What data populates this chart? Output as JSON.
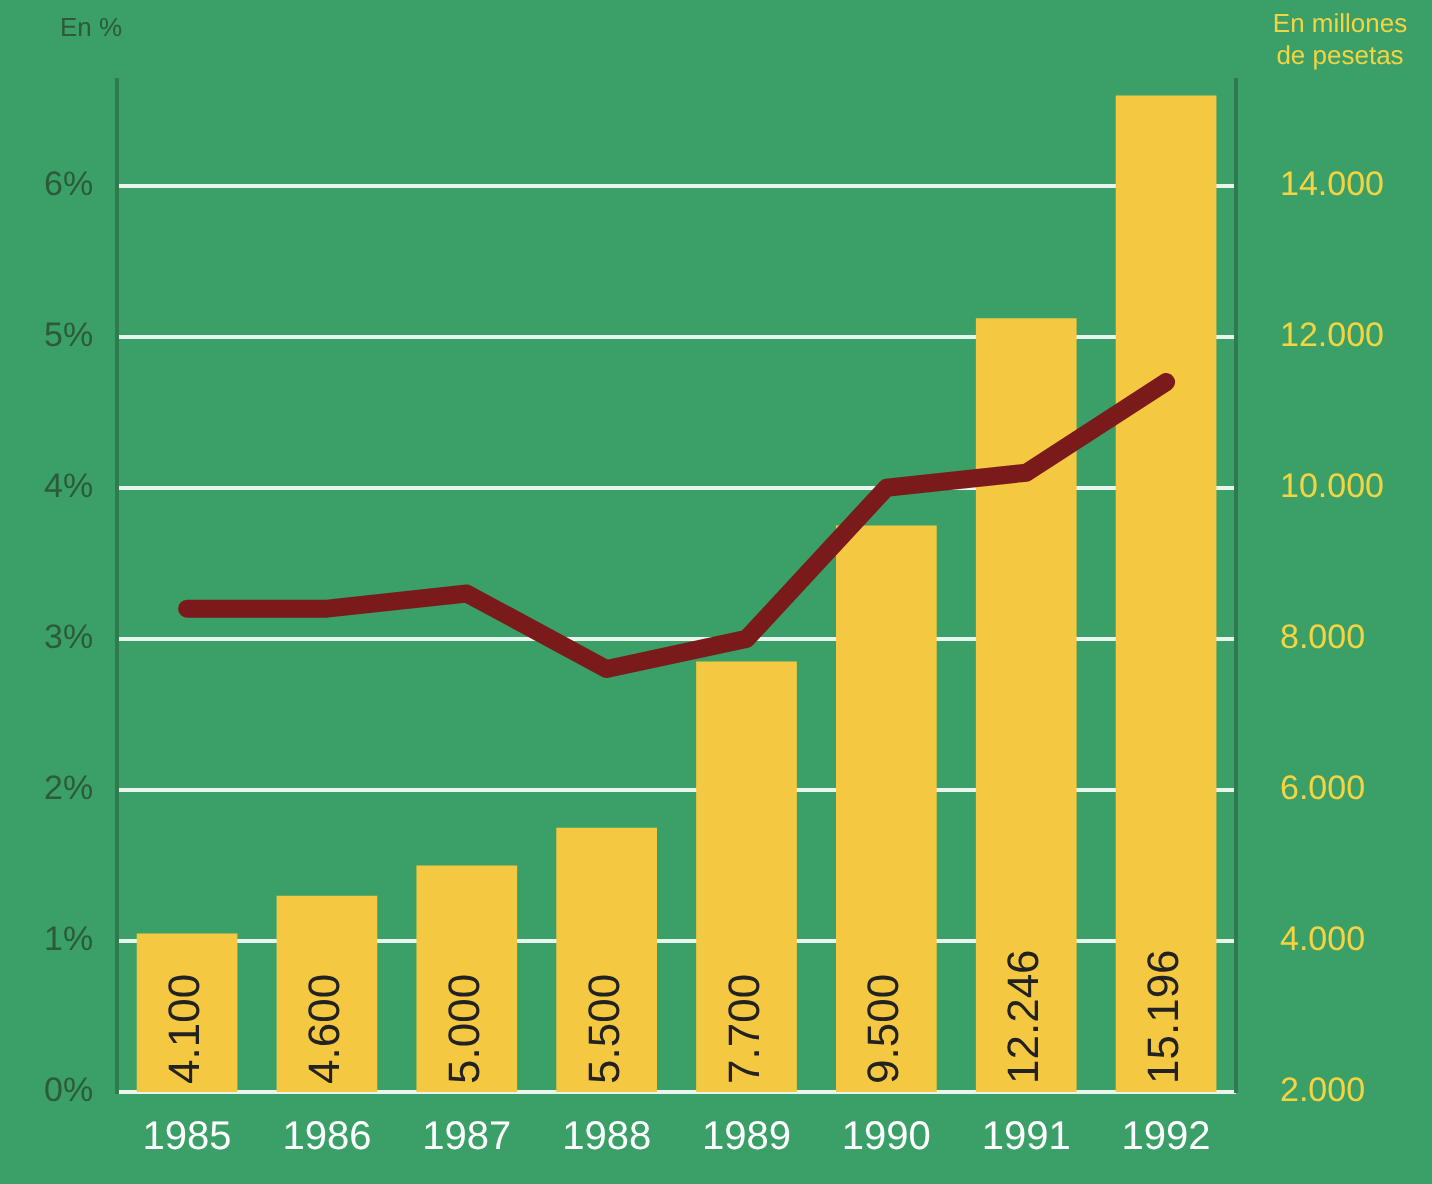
{
  "chart_data": {
    "type": "bar",
    "categories": [
      "1985",
      "1986",
      "1987",
      "1988",
      "1989",
      "1990",
      "1991",
      "1992"
    ],
    "series": [
      {
        "axis": "y2",
        "color": "#f5c842",
        "values": [
          4100,
          4600,
          5000,
          5500,
          7700,
          9500,
          12246,
          15196
        ],
        "value_labels": [
          "4.100",
          "4.600",
          "5.000",
          "5.500",
          "7.700",
          "9.500",
          "12.246",
          "15.196"
        ]
      },
      {
        "type": "line",
        "axis": "y",
        "color": "#7a1a1a",
        "values": [
          3.2,
          3.2,
          3.3,
          2.8,
          3.0,
          4.0,
          4.1,
          4.7
        ]
      }
    ],
    "ylabel": "En %",
    "y2label": "En millones de pesetas",
    "ylim": [
      0,
      6.7
    ],
    "yticks": [
      {
        "value": 0,
        "label": "0%"
      },
      {
        "value": 1,
        "label": "1%"
      },
      {
        "value": 2,
        "label": "2%"
      },
      {
        "value": 3,
        "label": "3%"
      },
      {
        "value": 4,
        "label": "4%"
      },
      {
        "value": 5,
        "label": "5%"
      },
      {
        "value": 6,
        "label": "6%"
      }
    ],
    "y2lim": [
      2000,
      15400
    ],
    "y2ticks": [
      {
        "value": 2000,
        "label": "2.000"
      },
      {
        "value": 4000,
        "label": "4.000"
      },
      {
        "value": 6000,
        "label": "6.000"
      },
      {
        "value": 8000,
        "label": "8.000"
      },
      {
        "value": 10000,
        "label": "10.000"
      },
      {
        "value": 12000,
        "label": "12.000"
      },
      {
        "value": 14000,
        "label": "14.000"
      }
    ],
    "grid": "y",
    "legend": false,
    "marker": "none",
    "line_style": "solid"
  }
}
